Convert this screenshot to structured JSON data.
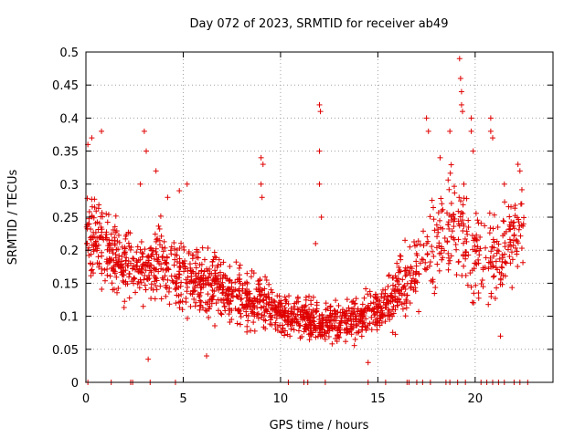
{
  "chart_data": {
    "type": "scatter",
    "title": "Day 072 of 2023, SRMTID for receiver ab49",
    "xlabel": "GPS time / hours",
    "ylabel": "SRMTID / TECUs",
    "xlim": [
      0,
      24
    ],
    "ylim": [
      0,
      0.5
    ],
    "xticks": [
      "0",
      "5",
      "10",
      "15",
      "20"
    ],
    "xtick_values": [
      0,
      5,
      10,
      15,
      20
    ],
    "yticks": [
      "0",
      "0.05",
      "0.1",
      "0.15",
      "0.2",
      "0.25",
      "0.3",
      "0.35",
      "0.4",
      "0.45",
      "0.5"
    ],
    "ytick_values": [
      0,
      0.05,
      0.1,
      0.15,
      0.2,
      0.25,
      0.3,
      0.35,
      0.4,
      0.45,
      0.5
    ],
    "grid": true,
    "marker": "+",
    "color": "#e00000",
    "series": [
      {
        "name": "SRMTID",
        "envelope": {
          "x": [
            0,
            1,
            2,
            3,
            4,
            5,
            6,
            7,
            8,
            9,
            10,
            11,
            12,
            13,
            14,
            15,
            16,
            17,
            18,
            19,
            20,
            21,
            22,
            22.5
          ],
          "y_mid": [
            0.22,
            0.2,
            0.18,
            0.17,
            0.18,
            0.16,
            0.15,
            0.14,
            0.13,
            0.12,
            0.1,
            0.1,
            0.09,
            0.09,
            0.1,
            0.11,
            0.13,
            0.17,
            0.22,
            0.24,
            0.2,
            0.19,
            0.22,
            0.24
          ],
          "y_spread": [
            0.07,
            0.06,
            0.05,
            0.05,
            0.05,
            0.05,
            0.05,
            0.05,
            0.05,
            0.04,
            0.03,
            0.03,
            0.03,
            0.03,
            0.03,
            0.04,
            0.05,
            0.06,
            0.07,
            0.08,
            0.08,
            0.07,
            0.06,
            0.06
          ]
        },
        "outliers": [
          {
            "x": 0.1,
            "y": 0.36
          },
          {
            "x": 0.3,
            "y": 0.37
          },
          {
            "x": 0.8,
            "y": 0.38
          },
          {
            "x": 3.0,
            "y": 0.38
          },
          {
            "x": 3.1,
            "y": 0.35
          },
          {
            "x": 2.8,
            "y": 0.3
          },
          {
            "x": 3.6,
            "y": 0.32
          },
          {
            "x": 4.2,
            "y": 0.28
          },
          {
            "x": 4.8,
            "y": 0.29
          },
          {
            "x": 5.2,
            "y": 0.3
          },
          {
            "x": 9.0,
            "y": 0.34
          },
          {
            "x": 9.1,
            "y": 0.33
          },
          {
            "x": 9.0,
            "y": 0.3
          },
          {
            "x": 9.05,
            "y": 0.28
          },
          {
            "x": 12.0,
            "y": 0.42
          },
          {
            "x": 12.05,
            "y": 0.41
          },
          {
            "x": 12.0,
            "y": 0.35
          },
          {
            "x": 12.0,
            "y": 0.3
          },
          {
            "x": 12.1,
            "y": 0.25
          },
          {
            "x": 11.8,
            "y": 0.21
          },
          {
            "x": 17.5,
            "y": 0.4
          },
          {
            "x": 17.6,
            "y": 0.38
          },
          {
            "x": 18.2,
            "y": 0.34
          },
          {
            "x": 18.7,
            "y": 0.38
          },
          {
            "x": 19.2,
            "y": 0.49
          },
          {
            "x": 19.25,
            "y": 0.46
          },
          {
            "x": 19.3,
            "y": 0.44
          },
          {
            "x": 19.3,
            "y": 0.42
          },
          {
            "x": 19.35,
            "y": 0.41
          },
          {
            "x": 19.8,
            "y": 0.4
          },
          {
            "x": 19.8,
            "y": 0.38
          },
          {
            "x": 19.9,
            "y": 0.35
          },
          {
            "x": 20.8,
            "y": 0.4
          },
          {
            "x": 20.8,
            "y": 0.38
          },
          {
            "x": 20.9,
            "y": 0.37
          },
          {
            "x": 22.2,
            "y": 0.33
          },
          {
            "x": 22.3,
            "y": 0.32
          },
          {
            "x": 21.5,
            "y": 0.3
          },
          {
            "x": 21.3,
            "y": 0.07
          },
          {
            "x": 3.2,
            "y": 0.035
          },
          {
            "x": 6.2,
            "y": 0.04
          },
          {
            "x": 14.5,
            "y": 0.03
          }
        ],
        "zero_points_x": [
          0.1,
          1.3,
          2.3,
          2.4,
          3.3,
          4.6,
          10.4,
          11.2,
          11.4,
          12.3,
          14.5,
          15.4,
          16.5,
          16.6,
          17.0,
          17.3,
          17.7,
          18.5,
          18.7,
          19.1,
          19.5,
          20.3,
          20.6,
          20.9,
          21.2,
          21.5,
          22.0,
          22.3,
          22.7
        ]
      }
    ]
  }
}
